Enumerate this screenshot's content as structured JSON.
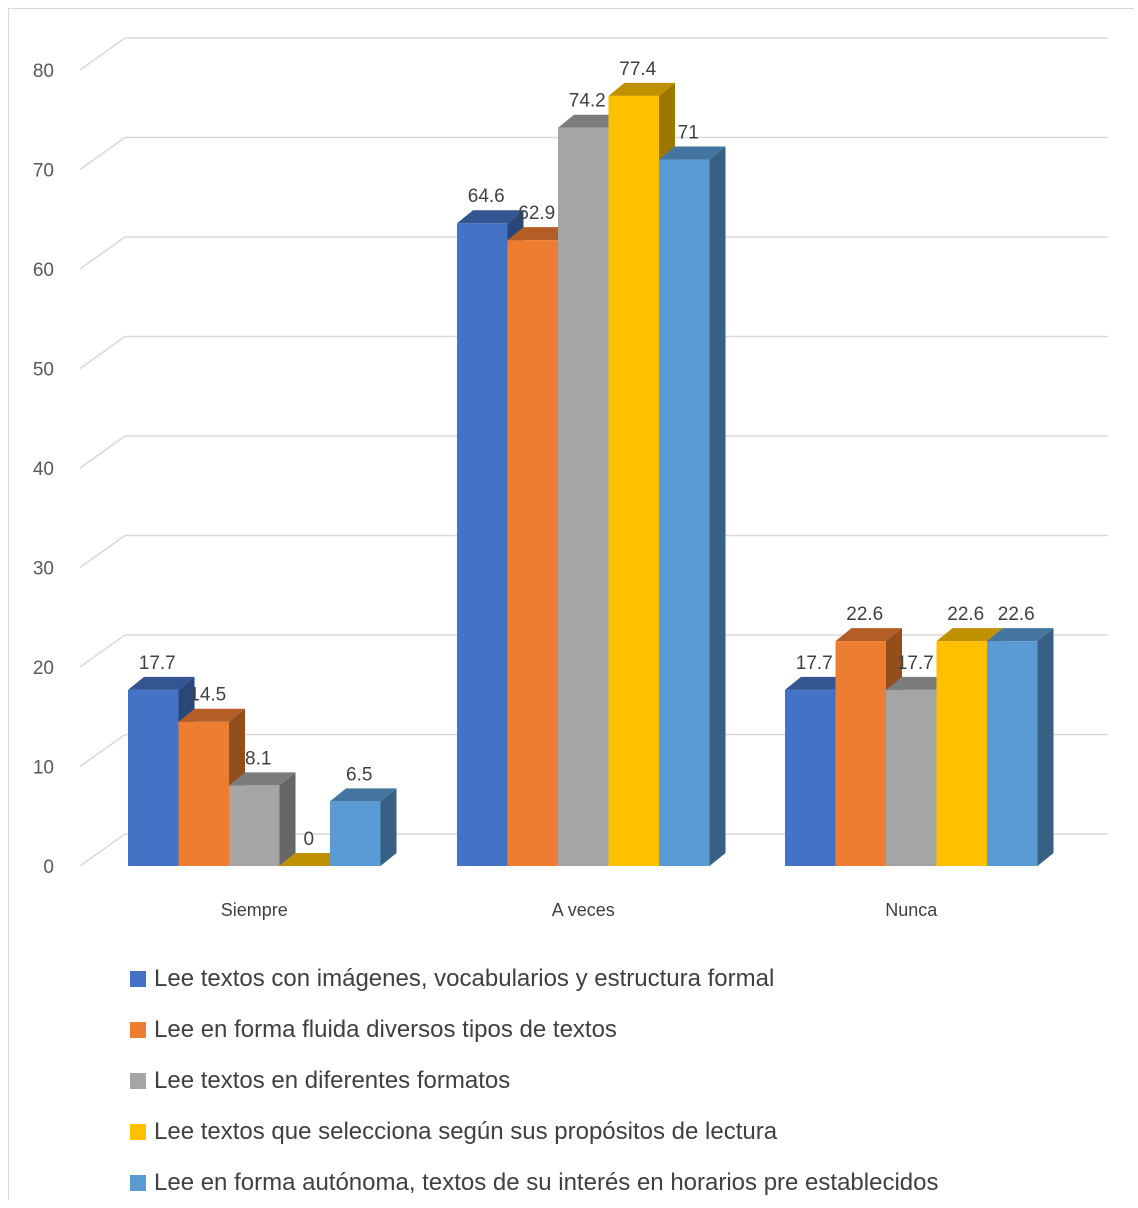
{
  "chart_data": {
    "type": "bar",
    "categories": [
      "Siempre",
      "A veces",
      "Nunca"
    ],
    "series": [
      {
        "name": "Lee textos con imágenes, vocabularios y estructura formal",
        "values": [
          17.7,
          64.6,
          17.7
        ],
        "color": "#4472C4"
      },
      {
        "name": "Lee en forma fluida diversos tipos de textos",
        "values": [
          14.5,
          62.9,
          22.6
        ],
        "color": "#ED7D31"
      },
      {
        "name": "Lee textos en diferentes formatos",
        "values": [
          8.1,
          74.2,
          17.7
        ],
        "color": "#A5A5A5"
      },
      {
        "name": "Lee textos que selecciona según sus propósitos de lectura",
        "values": [
          0,
          77.4,
          22.6
        ],
        "color": "#FFC000"
      },
      {
        "name": "Lee en forma autónoma, textos de su interés en horarios pre establecidos",
        "values": [
          6.5,
          71,
          22.6
        ],
        "color": "#5B9BD5"
      }
    ],
    "data_labels": [
      [
        "17.7",
        "64.6",
        "17.7"
      ],
      [
        "14.5",
        "62.9",
        "22.6"
      ],
      [
        "8.1",
        "74.2",
        "17.7"
      ],
      [
        "0",
        "77.4",
        "22.6"
      ],
      [
        "6.5",
        "71",
        "22.6"
      ]
    ],
    "y_ticks": [
      "0",
      "10",
      "20",
      "30",
      "40",
      "50",
      "60",
      "70",
      "80"
    ],
    "ylim": [
      0,
      80
    ],
    "grid": true,
    "three_d": true,
    "legend_position": "bottom"
  }
}
